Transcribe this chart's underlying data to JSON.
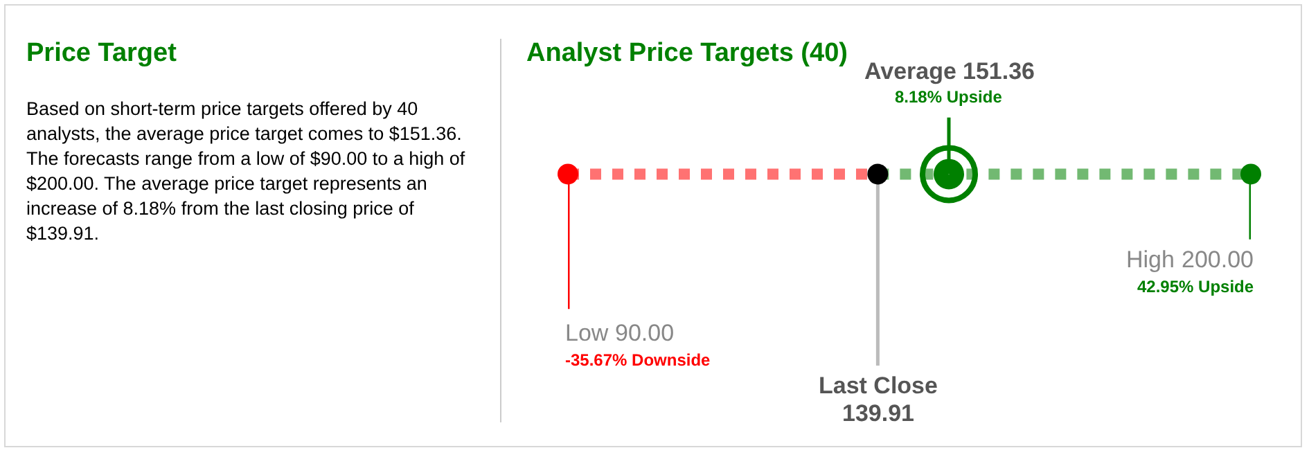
{
  "chart_data": {
    "type": "other",
    "title": "Analyst Price Targets (40)",
    "categories": [
      "Low",
      "Last Close",
      "Average",
      "High"
    ],
    "values": [
      90,
      139.91,
      151.36,
      200
    ],
    "value_labels": [
      "90.00",
      "139.91",
      "151.36",
      "200.00"
    ],
    "colors": [
      "#ff0000",
      "#000000",
      "#008000",
      "#008000"
    ],
    "data_labels": true,
    "annotations": [
      "Price Target",
      "Based on short-term price targets offered by 40 analysts, the average price target comes to $151.36. The forecasts range from a low of $90.00 to a high of $200.00. The average price target represents an increase of 8.18% from the last closing price of $139.91.",
      "-35.67% Downside",
      "8.18% Upside",
      "42.95% Upside"
    ]
  }
}
